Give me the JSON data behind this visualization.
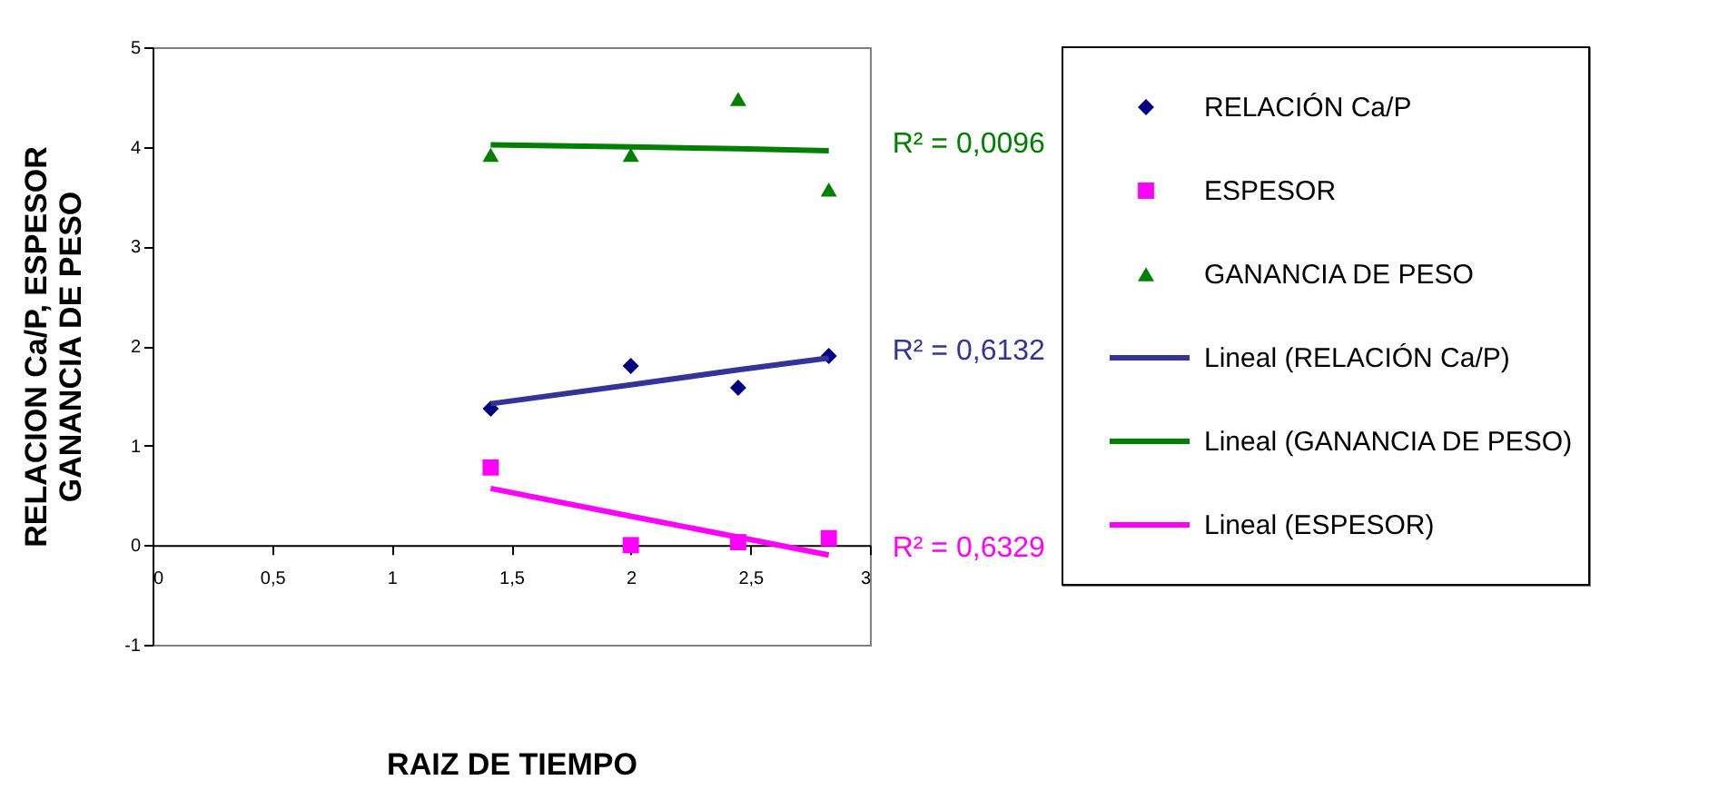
{
  "chart_data": {
    "type": "scatter",
    "xlabel": "RAIZ DE TIEMPO",
    "ylabel": "RELACION Ca/P, ESPESOR\nGANANCIA DE PESO",
    "x": [
      1.414,
      2,
      2.449,
      2.828
    ],
    "series": [
      {
        "name": "RELACIÓN Ca/P",
        "color": "#000080",
        "marker": "diamond",
        "values": [
          1.37,
          1.8,
          1.58,
          1.9
        ]
      },
      {
        "name": "ESPESOR",
        "color": "#ff00ff",
        "marker": "square",
        "values": [
          0.78,
          0.0,
          0.03,
          0.07
        ]
      },
      {
        "name": "GANANCIA DE PESO",
        "color": "#008000",
        "marker": "triangle",
        "values": [
          3.92,
          3.92,
          4.48,
          3.57
        ]
      },
      {
        "name": "Lineal (RELACIÓN Ca/P)",
        "type": "line",
        "color": "#333399",
        "marker": "none",
        "values": [
          1.42,
          1.61,
          1.76,
          1.88
        ]
      },
      {
        "name": "Lineal (GANANCIA DE PESO)",
        "type": "line",
        "color": "#008000",
        "marker": "none",
        "values": [
          4.02,
          4.0,
          3.98,
          3.96
        ]
      },
      {
        "name": "Lineal (ESPESOR)",
        "type": "line",
        "color": "#ff00ff",
        "marker": "none",
        "values": [
          0.57,
          0.29,
          0.08,
          -0.1
        ]
      }
    ],
    "annotations": [
      "R² = 0,0096",
      "R² = 0,6132",
      "R² = 0,6329"
    ],
    "xlim": [
      0,
      3
    ],
    "ylim": [
      -1,
      5
    ],
    "xticks": [
      0,
      {
        "value": 0.5,
        "label": "0,5"
      },
      1,
      {
        "value": 1.5,
        "label": "1,5"
      },
      2,
      {
        "value": 2.5,
        "label": "2,5"
      },
      3
    ],
    "yticks": [
      -1,
      0,
      1,
      2,
      3,
      4,
      5
    ],
    "grid": false,
    "legend": "right"
  }
}
